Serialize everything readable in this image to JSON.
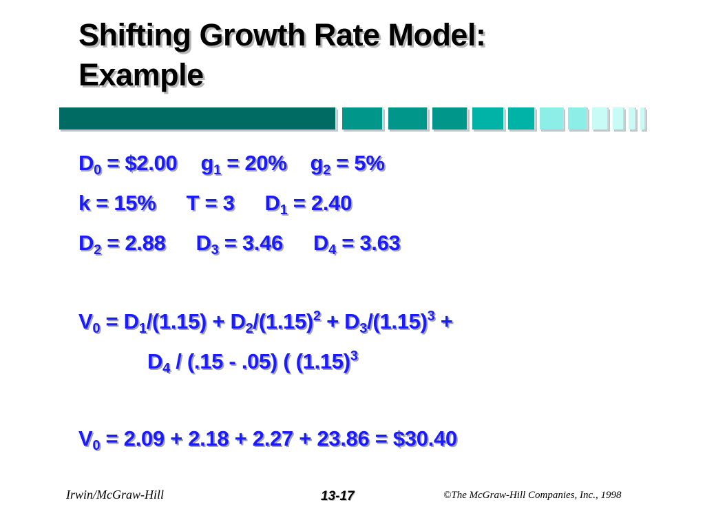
{
  "slide": {
    "title_line1": "Shifting Growth Rate Model:",
    "title_line2": "Example"
  },
  "colors": {
    "text": "#1a1aff",
    "bar_dark": "#006b63",
    "bar_mid": "#00968a",
    "bar_teal": "#00b3a6",
    "bar_light": "#8ceee6",
    "bar_pale": "#c8fbf6"
  },
  "lines": {
    "l1": {
      "a": "D",
      "a_sub": "0",
      "a_val": " = $2.00",
      "b": "g",
      "b_sub": "1",
      "b_val": " = 20%",
      "c": "g",
      "c_sub": "2",
      "c_val": " = 5%"
    },
    "l2": {
      "a_val": "k = 15%",
      "b_val": "T = 3",
      "c": "D",
      "c_sub": "1",
      "c_val": " = 2.40"
    },
    "l3": {
      "a": "D",
      "a_sub": "2",
      "a_val": " = 2.88",
      "b": "D",
      "b_sub": "3",
      "b_val": " = 3.46",
      "c": "D",
      "c_sub": "4",
      "c_val": " = 3.63"
    },
    "l4": {
      "v": "V",
      "v_sub": "0",
      "eq": " = D",
      "d1_sub": "1",
      "t1": "/(1.15) + D",
      "d2_sub": "2",
      "t2": "/(1.15)",
      "p2": "2",
      "t3": " + D",
      "d3_sub": "3",
      "t4": "/(1.15)",
      "p3": "3",
      "t5": " +"
    },
    "l5": {
      "d": "D",
      "d_sub": "4",
      "t1": " / (.15 - .05) ( (1.15)",
      "p3": "3"
    },
    "l6": {
      "v": "V",
      "v_sub": "0",
      "t1": " = 2.09 + 2.18 + 2.27 + 23.86 = $30.40"
    }
  },
  "footer": {
    "publisher": "Irwin/McGraw-Hill",
    "page": "13-17",
    "copyright": "©The McGraw-Hill Companies, Inc., 1998"
  }
}
